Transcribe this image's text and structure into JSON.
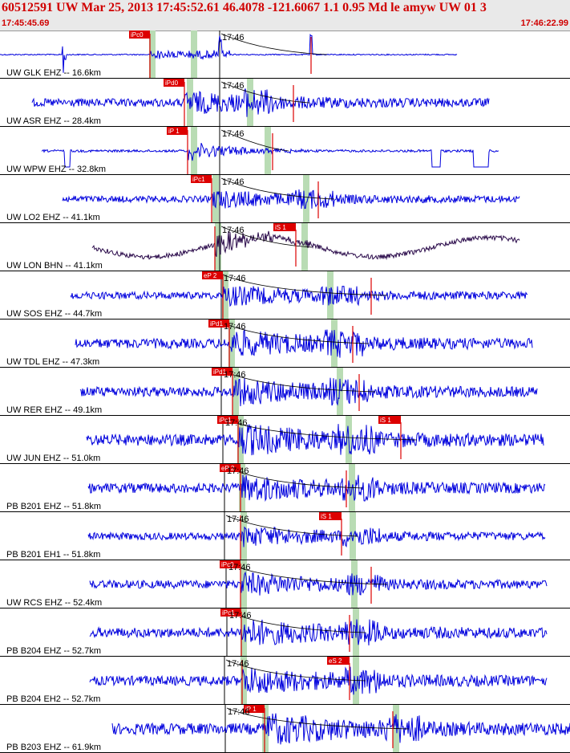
{
  "header": {
    "title": "60512591 UW Mar 25, 2013 17:45:52.61    46.4078 -121.6067  1.1 0.95 Md le amyw UW 01    3",
    "start_time": "17:45:45.69",
    "end_time": "17:46:22.99"
  },
  "minute_label": "17:46",
  "colors": {
    "trace": "#0000dd",
    "trace_dark": "#2a0a4a",
    "pick": "#dd0000",
    "window": "#b9dcb4",
    "header_text": "#d00000"
  },
  "traces": [
    {
      "label": "UW GLK EHZ -- 16.6km",
      "pick": "iPc0",
      "s_pick": "",
      "color": "trace"
    },
    {
      "label": "UW ASR EHZ -- 28.4km",
      "pick": "iPd0",
      "s_pick": "",
      "color": "trace"
    },
    {
      "label": "UW WPW EHZ -- 32.8km",
      "pick": "iP 1",
      "s_pick": "",
      "color": "trace"
    },
    {
      "label": "UW LO2 EHZ -- 41.1km",
      "pick": "iPc1",
      "s_pick": "",
      "color": "trace"
    },
    {
      "label": "UW LON BHN -- 41.1km",
      "pick": "",
      "s_pick": "iS 1",
      "color": "trace_dark"
    },
    {
      "label": "UW SOS EHZ -- 44.7km",
      "pick": "eP 2",
      "s_pick": "",
      "color": "trace"
    },
    {
      "label": "UW TDL EHZ -- 47.3km",
      "pick": "iPd1",
      "s_pick": "",
      "color": "trace"
    },
    {
      "label": "UW RER EHZ -- 49.1km",
      "pick": "iPd1",
      "s_pick": "",
      "color": "trace"
    },
    {
      "label": "UW JUN EHZ -- 51.0km",
      "pick": "iPc1",
      "s_pick": "iS 1",
      "color": "trace"
    },
    {
      "label": "PB B201 EHZ -- 51.8km",
      "pick": "eP 2",
      "s_pick": "",
      "color": "trace"
    },
    {
      "label": "PB B201 EH1 -- 51.8km",
      "pick": "",
      "s_pick": "iS 1",
      "color": "trace"
    },
    {
      "label": "UW RCS EHZ -- 52.4km",
      "pick": "iPc0",
      "s_pick": "",
      "color": "trace"
    },
    {
      "label": "PB B204 EHZ -- 52.7km",
      "pick": "iPc1",
      "s_pick": "",
      "color": "trace"
    },
    {
      "label": "PB B204 EH2 -- 52.7km",
      "pick": "",
      "s_pick": "eS 2",
      "color": "trace"
    },
    {
      "label": "PB B203 EHZ -- 61.9km",
      "pick": "iP 1",
      "s_pick": "",
      "color": "trace"
    }
  ]
}
